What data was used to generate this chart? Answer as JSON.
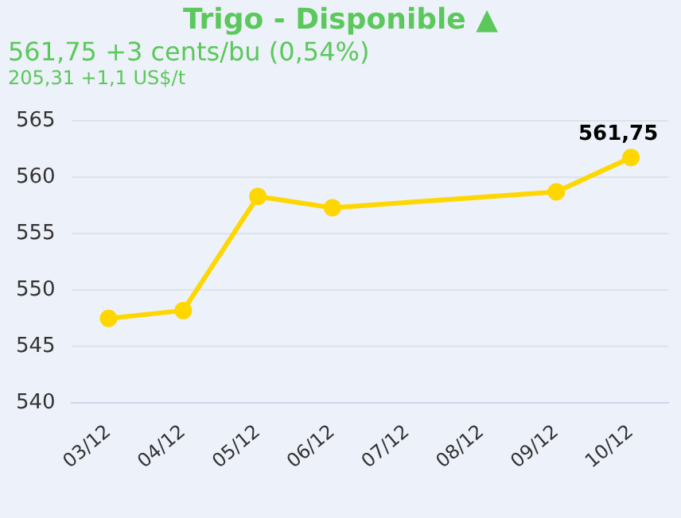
{
  "chart_data": {
    "type": "line",
    "title": "Trigo - Disponible ▲",
    "subtitle": "561,75 +3 cents/bu (0,54%)",
    "annotations": [
      "205,31 +1,1 US$/t"
    ],
    "categories": [
      "03/12",
      "04/12",
      "05/12",
      "06/12",
      "07/12",
      "08/12",
      "09/12",
      "10/12"
    ],
    "series": [
      {
        "color": "#ffd700",
        "values": [
          547.5,
          548.2,
          558.3,
          557.3,
          null,
          null,
          558.7,
          561.75
        ],
        "value_labels": [
          null,
          null,
          null,
          null,
          null,
          null,
          null,
          "561,75"
        ]
      }
    ],
    "ylim": [
      540,
      565
    ],
    "yticks": [
      540,
      545,
      550,
      555,
      560,
      565
    ],
    "grid": "y",
    "legend": false,
    "marker": "circle",
    "line_style": "solid"
  }
}
